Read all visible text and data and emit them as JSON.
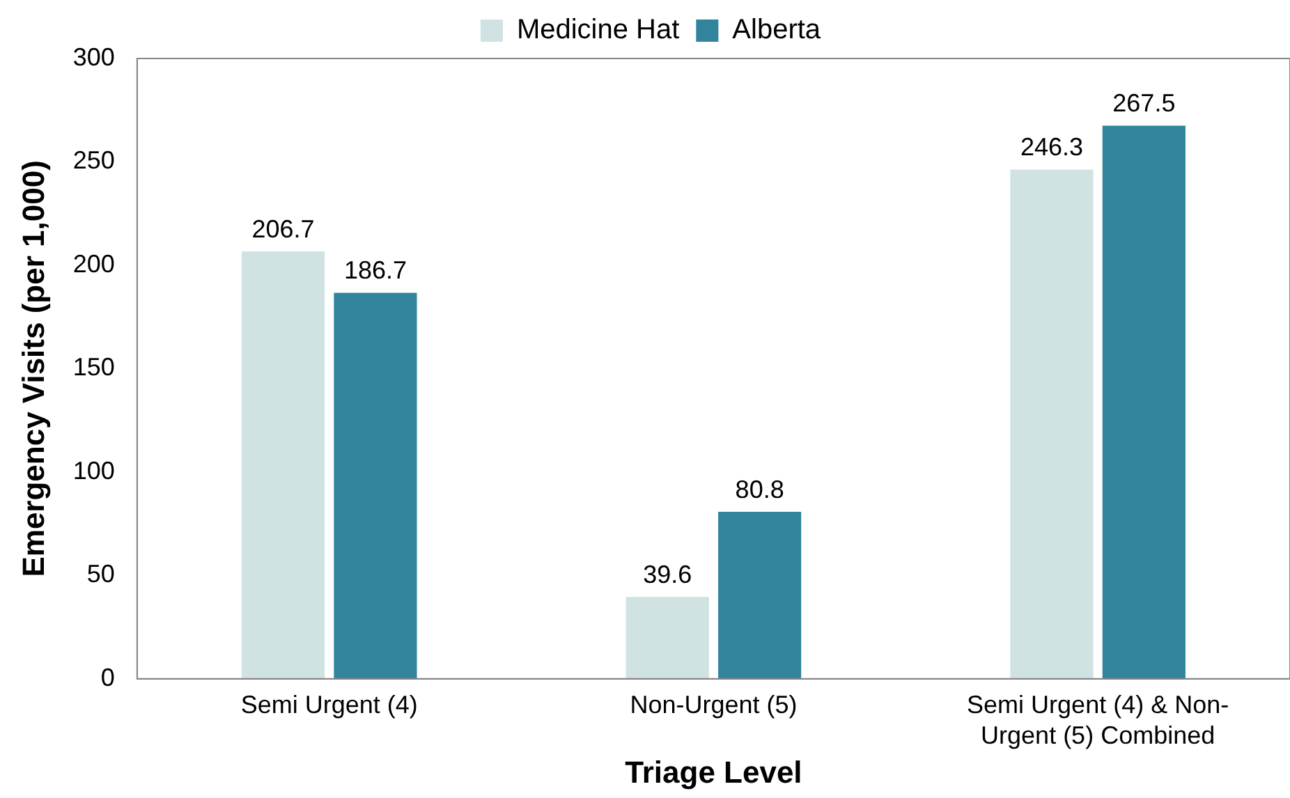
{
  "chart_data": {
    "type": "bar",
    "xlabel": "Triage Level",
    "ylabel": "Emergency Visits (per 1,000)",
    "categories": [
      "Semi Urgent (4)",
      "Non-Urgent (5)",
      "Semi Urgent (4) & Non-Urgent (5) Combined"
    ],
    "series": [
      {
        "name": "Medicine Hat",
        "color": "#d0e3e2",
        "values": [
          206.7,
          39.6,
          246.3
        ]
      },
      {
        "name": "Alberta",
        "color": "#31849b",
        "values": [
          186.7,
          80.8,
          267.5
        ]
      }
    ],
    "ylim": [
      0,
      300
    ],
    "yticks": [
      0,
      50,
      100,
      150,
      200,
      250,
      300
    ],
    "grid": false,
    "legend": "top",
    "data_labels": true
  }
}
